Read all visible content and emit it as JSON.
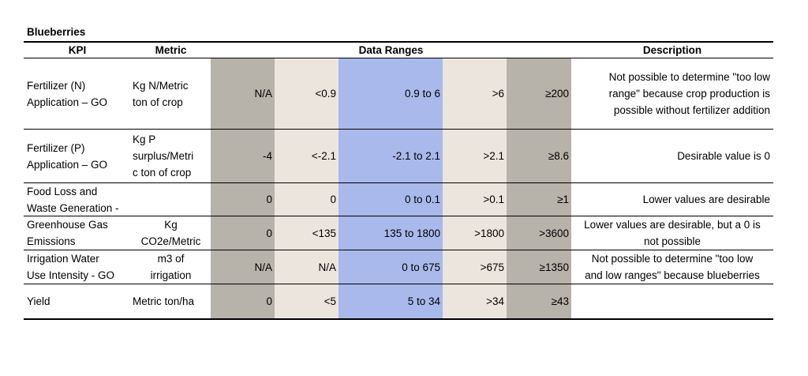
{
  "table": {
    "title": "Blueberries",
    "headers": {
      "kpi": "KPI",
      "metric": "Metric",
      "data_ranges": "Data Ranges",
      "description": "Description"
    },
    "band_colors": {
      "too_low": "#b7b2aa",
      "low": "#ece5dd",
      "desirable": "#a9b9eb",
      "high": "#ece5dd",
      "too_high": "#b7b2aa"
    },
    "rows": [
      {
        "kpi": [
          "Fertilizer (N)",
          "Application – GO"
        ],
        "metric": [
          "Kg N/Metric",
          "ton of crop"
        ],
        "ranges": [
          "N/A",
          "<0.9",
          "0.9 to 6",
          ">6",
          "≥200"
        ],
        "description": [
          "Not possible to determine \"too low",
          "range\" because crop production is",
          "possible without fertilizer addition"
        ]
      },
      {
        "kpi": [
          "Fertilizer (P)",
          "Application – GO"
        ],
        "metric": [
          "Kg P",
          "surplus/Metri",
          "c ton of crop"
        ],
        "ranges": [
          "-4",
          "<-2.1",
          "-2.1 to 2.1",
          ">2.1",
          "≥8.6"
        ],
        "description": [
          "Desirable value is 0"
        ]
      },
      {
        "kpi": [
          "Food Loss and",
          "Waste Generation -"
        ],
        "metric": [],
        "ranges": [
          "0",
          "0",
          "0 to 0.1",
          ">0.1",
          "≥1"
        ],
        "description": [
          "Lower values are desirable"
        ]
      },
      {
        "kpi": [
          "Greenhouse Gas",
          "Emissions"
        ],
        "metric": [
          "Kg",
          "CO2e/Metric"
        ],
        "ranges": [
          "0",
          "<135",
          "135 to 1800",
          ">1800",
          ">3600"
        ],
        "description": [
          "Lower values are desirable, but a 0 is",
          "not possible"
        ]
      },
      {
        "kpi": [
          "Irrigation Water",
          "Use Intensity - GO"
        ],
        "metric": [
          "m3 of",
          "irrigation"
        ],
        "ranges": [
          "N/A",
          "N/A",
          "0 to 675",
          ">675",
          "≥1350"
        ],
        "description": [
          "Not possible to determine \"too low",
          "and low ranges\" because blueberries"
        ]
      },
      {
        "kpi": [
          "Yield"
        ],
        "metric": [
          "Metric ton/ha"
        ],
        "ranges": [
          "0",
          "<5",
          "5  to 34",
          ">34",
          "≥43"
        ],
        "description": []
      }
    ]
  }
}
